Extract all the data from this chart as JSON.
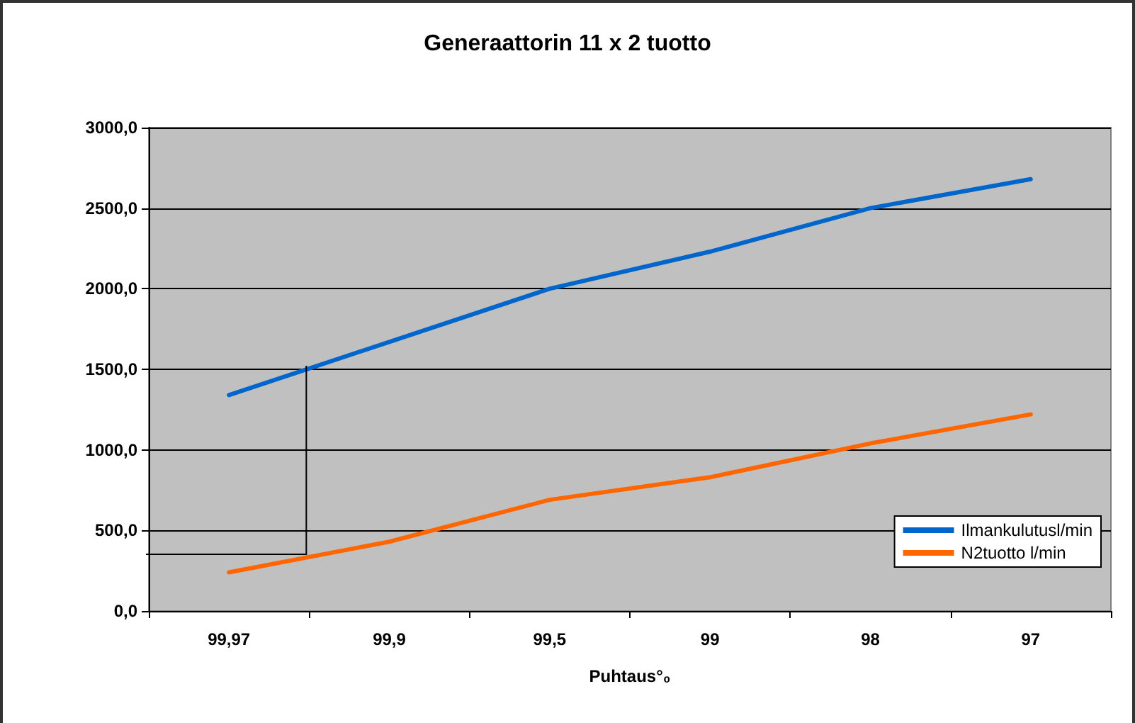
{
  "chart_data": {
    "type": "line",
    "title": "Generaattorin 11 x 2 tuotto",
    "xlabel": "Puhtaus°₀",
    "categories": [
      "99,97",
      "99,9",
      "99,5",
      "99",
      "98",
      "97"
    ],
    "series": [
      {
        "name": "Ilmankulutusl/min",
        "color": "#0066cc",
        "values": [
          1340,
          1670,
          2000,
          2230,
          2500,
          2680
        ]
      },
      {
        "name": "N2tuotto l/min",
        "color": "#ff6600",
        "values": [
          240,
          430,
          690,
          830,
          1040,
          1220
        ]
      }
    ],
    "ylim": [
      0,
      3000
    ],
    "yticks": [
      {
        "value": 0,
        "label": "0,0"
      },
      {
        "value": 500,
        "label": "500,0"
      },
      {
        "value": 1000,
        "label": "1000,0"
      },
      {
        "value": 1500,
        "label": "1500,0"
      },
      {
        "value": 2000,
        "label": "2000,0"
      },
      {
        "value": 2500,
        "label": "2500,0"
      },
      {
        "value": 3000,
        "label": "3000,0"
      }
    ],
    "grid": "y",
    "legend": "bottom right",
    "marker": "none",
    "line_style": "solid"
  }
}
